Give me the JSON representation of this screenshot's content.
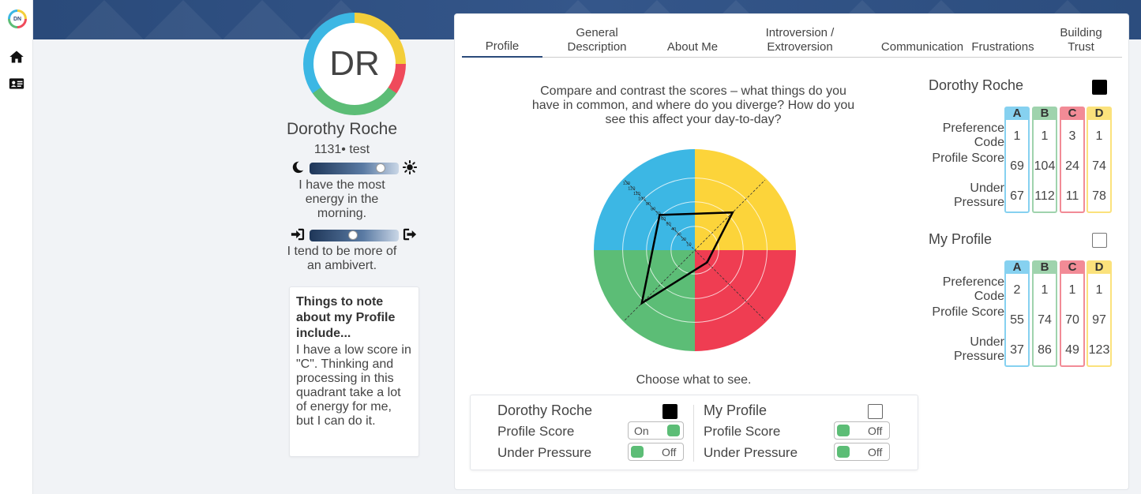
{
  "app": {
    "logo_text": "DN",
    "nav": [
      {
        "icon": "home-icon"
      },
      {
        "icon": "id-card-icon"
      }
    ]
  },
  "profile": {
    "initials": "DR",
    "name": "Dorothy Roche",
    "id_line": "1131• test",
    "energy": {
      "text": "I have the most energy in the morning.",
      "level": 0.83,
      "left_icon": "moon-icon",
      "right_icon": "sun-icon"
    },
    "introversion": {
      "text": "I tend to be more of an ambivert.",
      "level": 0.49,
      "left_icon": "sign-in-icon",
      "right_icon": "sign-out-icon"
    },
    "note_title": "Things to note about my Profile include...",
    "note_body": "I have a low score in \"C\". Thinking and processing in this quadrant take a lot of energy for me, but I can do it."
  },
  "tabs": [
    {
      "label": "Profile",
      "active": true
    },
    {
      "label": "General Description"
    },
    {
      "label": "About Me"
    },
    {
      "label": "Introversion / Extroversion"
    },
    {
      "label": "Communication"
    },
    {
      "label": "Frustrations"
    },
    {
      "label": "Building Trust"
    }
  ],
  "question": "Compare and contrast the scores – what things do you have in common, and where do you diverge? How do you see this affect your day-to-day?",
  "chart_data": {
    "type": "radar",
    "quadrants": [
      "A",
      "D",
      "C",
      "B"
    ],
    "quadrant_colors": {
      "A": "#3cb7e4",
      "D": "#fcd43a",
      "C": "#ef3d52",
      "B": "#5cbd76"
    },
    "scale_ticks": [
      10,
      20,
      30,
      40,
      50,
      60,
      70,
      80,
      90,
      100,
      110,
      120,
      130
    ],
    "rmax": 140,
    "series": [
      {
        "name": "Dorothy Roche",
        "color": "#000000",
        "values": {
          "A": 69,
          "B": 104,
          "C": 24,
          "D": 74
        }
      }
    ]
  },
  "choose_label": "Choose what to see.",
  "toggles": [
    {
      "name": "Dorothy Roche",
      "checked": true,
      "profile_score_label": "Profile Score",
      "profile_score_state": "On",
      "under_pressure_label": "Under Pressure",
      "under_pressure_state": "Off"
    },
    {
      "name": "My Profile",
      "checked": false,
      "profile_score_label": "Profile Score",
      "profile_score_state": "Off",
      "under_pressure_label": "Under Pressure",
      "under_pressure_state": "Off"
    }
  ],
  "score_tables": [
    {
      "name": "Dorothy Roche",
      "checked": true,
      "columns": [
        "A",
        "B",
        "C",
        "D"
      ],
      "column_colors": [
        "#3cb7e4",
        "#5cbd76",
        "#ef4a5b",
        "#fcd43a"
      ],
      "column_head_colors": [
        "#86d1f0",
        "#9fd3ad",
        "#f28b96",
        "#fbe27c"
      ],
      "rows": [
        {
          "label": "Preference Code",
          "values": [
            1,
            1,
            3,
            1
          ]
        },
        {
          "label": "Profile Score",
          "values": [
            69,
            104,
            24,
            74
          ]
        },
        {
          "label": "Under Pressure",
          "values": [
            67,
            112,
            11,
            78
          ]
        }
      ]
    },
    {
      "name": "My Profile",
      "checked": false,
      "columns": [
        "A",
        "B",
        "C",
        "D"
      ],
      "column_colors": [
        "#3cb7e4",
        "#5cbd76",
        "#ef4a5b",
        "#fcd43a"
      ],
      "column_head_colors": [
        "#86d1f0",
        "#9fd3ad",
        "#f28b96",
        "#fbe27c"
      ],
      "rows": [
        {
          "label": "Preference Code",
          "values": [
            2,
            1,
            1,
            1
          ]
        },
        {
          "label": "Profile Score",
          "values": [
            55,
            74,
            70,
            97
          ]
        },
        {
          "label": "Under Pressure",
          "values": [
            37,
            86,
            49,
            123
          ]
        }
      ]
    }
  ]
}
